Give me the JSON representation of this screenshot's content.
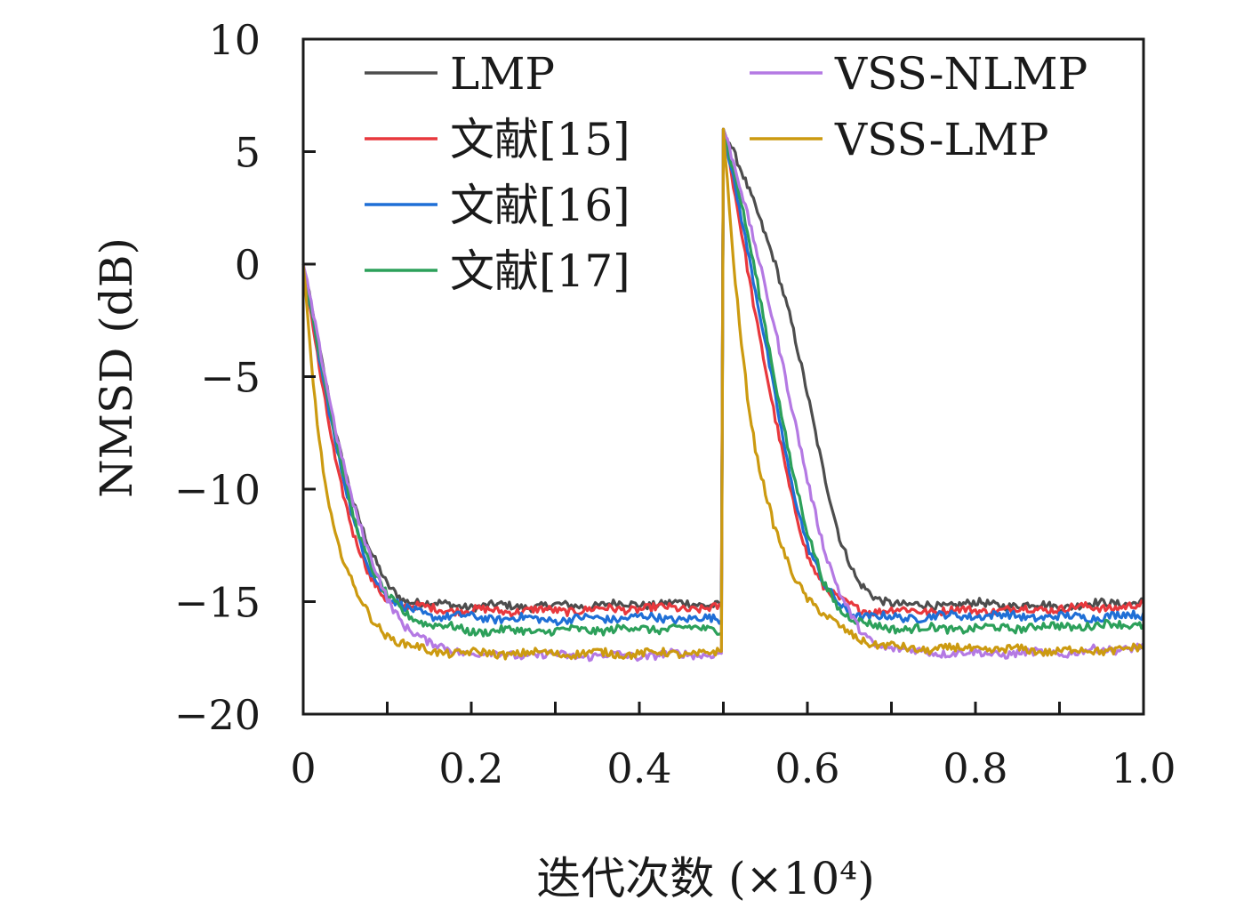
{
  "chart_data": {
    "type": "line",
    "title": "",
    "xlabel": "迭代次数 (×10⁴)",
    "ylabel": "NMSD (dB)",
    "xlim": [
      0,
      1.0
    ],
    "ylim": [
      -20,
      10
    ],
    "x_ticks": [
      0,
      0.1,
      0.2,
      0.3,
      0.4,
      0.5,
      0.6,
      0.7,
      0.8,
      0.9,
      1.0
    ],
    "x_tick_labels": [
      "0",
      "0.2",
      "0.4",
      "0.6",
      "0.8",
      "1.0"
    ],
    "x_tick_label_values": [
      0,
      0.2,
      0.4,
      0.6,
      0.8,
      1.0
    ],
    "y_ticks": [
      10,
      5,
      0,
      -5,
      -10,
      -15,
      -20
    ],
    "y_tick_labels": [
      "10",
      "5",
      "0",
      "−5",
      "−10",
      "−15",
      "−20"
    ],
    "grid": false,
    "legend_position": "top",
    "series": [
      {
        "name": "LMP",
        "color": "#4d4d4d",
        "x": [
          0,
          0.02,
          0.04,
          0.06,
          0.08,
          0.1,
          0.12,
          0.15,
          0.2,
          0.3,
          0.4,
          0.499,
          0.5,
          0.52,
          0.54,
          0.56,
          0.58,
          0.6,
          0.62,
          0.64,
          0.66,
          0.68,
          0.72,
          0.8,
          0.9,
          1.0
        ],
        "y": [
          0,
          -4.0,
          -7.7,
          -10.6,
          -12.8,
          -14.3,
          -14.9,
          -15.1,
          -15.2,
          -15.2,
          -15.1,
          -15.1,
          6.0,
          4.2,
          2.4,
          0.3,
          -2.5,
          -5.8,
          -9.3,
          -12.4,
          -14.2,
          -14.8,
          -15.2,
          -15.1,
          -15.2,
          -15.0
        ]
      },
      {
        "name": "文献[15]",
        "color": "#e8383d",
        "x": [
          0,
          0.02,
          0.04,
          0.06,
          0.08,
          0.1,
          0.12,
          0.15,
          0.2,
          0.3,
          0.4,
          0.499,
          0.5,
          0.52,
          0.54,
          0.56,
          0.58,
          0.6,
          0.62,
          0.64,
          0.66,
          0.68,
          0.72,
          0.8,
          0.9,
          1.0
        ],
        "y": [
          0,
          -4.8,
          -9.0,
          -12.1,
          -14.0,
          -14.9,
          -15.2,
          -15.3,
          -15.4,
          -15.4,
          -15.3,
          -15.3,
          6.0,
          1.8,
          -2.6,
          -6.6,
          -10.2,
          -12.9,
          -14.4,
          -15.0,
          -15.3,
          -15.4,
          -15.4,
          -15.4,
          -15.3,
          -15.2
        ]
      },
      {
        "name": "文献[16]",
        "color": "#1f6fd6",
        "x": [
          0,
          0.02,
          0.04,
          0.06,
          0.08,
          0.1,
          0.12,
          0.15,
          0.2,
          0.3,
          0.4,
          0.499,
          0.5,
          0.52,
          0.54,
          0.56,
          0.58,
          0.6,
          0.62,
          0.64,
          0.66,
          0.68,
          0.72,
          0.8,
          0.9,
          1.0
        ],
        "y": [
          0,
          -4.3,
          -8.3,
          -11.5,
          -13.6,
          -14.8,
          -15.3,
          -15.6,
          -15.7,
          -15.8,
          -15.7,
          -15.8,
          6.0,
          2.4,
          -1.6,
          -5.6,
          -9.5,
          -12.5,
          -14.3,
          -15.2,
          -15.6,
          -15.7,
          -15.7,
          -15.6,
          -15.7,
          -15.6
        ]
      },
      {
        "name": "文献[17]",
        "color": "#2ca05a",
        "x": [
          0,
          0.02,
          0.04,
          0.06,
          0.08,
          0.1,
          0.12,
          0.15,
          0.2,
          0.3,
          0.4,
          0.499,
          0.5,
          0.52,
          0.54,
          0.56,
          0.58,
          0.6,
          0.62,
          0.64,
          0.66,
          0.68,
          0.72,
          0.8,
          0.9,
          1.0
        ],
        "y": [
          0,
          -4.1,
          -8.0,
          -11.2,
          -13.4,
          -14.8,
          -15.5,
          -16.0,
          -16.3,
          -16.3,
          -16.2,
          -16.2,
          6.0,
          2.9,
          -0.8,
          -4.8,
          -8.8,
          -12.0,
          -14.2,
          -15.4,
          -15.9,
          -16.1,
          -16.2,
          -16.2,
          -16.1,
          -16.0
        ]
      },
      {
        "name": "VSS-NLMP",
        "color": "#b479e3",
        "x": [
          0,
          0.02,
          0.04,
          0.06,
          0.08,
          0.1,
          0.12,
          0.15,
          0.2,
          0.3,
          0.4,
          0.499,
          0.5,
          0.52,
          0.54,
          0.56,
          0.58,
          0.6,
          0.62,
          0.64,
          0.66,
          0.68,
          0.72,
          0.8,
          0.9,
          1.0
        ],
        "y": [
          0,
          -3.9,
          -7.6,
          -10.7,
          -13.1,
          -14.9,
          -16.0,
          -16.9,
          -17.3,
          -17.4,
          -17.4,
          -17.3,
          6.0,
          3.4,
          0.6,
          -2.6,
          -6.2,
          -9.6,
          -12.6,
          -14.8,
          -16.2,
          -16.9,
          -17.2,
          -17.3,
          -17.3,
          -17.0
        ]
      },
      {
        "name": "VSS-LMP",
        "color": "#cc9a10",
        "x": [
          0,
          0.01,
          0.02,
          0.03,
          0.04,
          0.06,
          0.08,
          0.1,
          0.12,
          0.15,
          0.2,
          0.3,
          0.4,
          0.499,
          0.5,
          0.51,
          0.52,
          0.53,
          0.54,
          0.56,
          0.58,
          0.6,
          0.62,
          0.64,
          0.66,
          0.68,
          0.72,
          0.8,
          0.9,
          1.0
        ],
        "y": [
          0,
          -4.6,
          -8.1,
          -10.6,
          -12.3,
          -14.4,
          -15.7,
          -16.5,
          -16.9,
          -17.2,
          -17.3,
          -17.3,
          -17.3,
          -17.3,
          6.0,
          1.0,
          -3.0,
          -6.2,
          -8.6,
          -11.7,
          -13.6,
          -14.8,
          -15.6,
          -16.2,
          -16.6,
          -16.9,
          -17.1,
          -17.1,
          -17.2,
          -17.1
        ]
      }
    ]
  }
}
